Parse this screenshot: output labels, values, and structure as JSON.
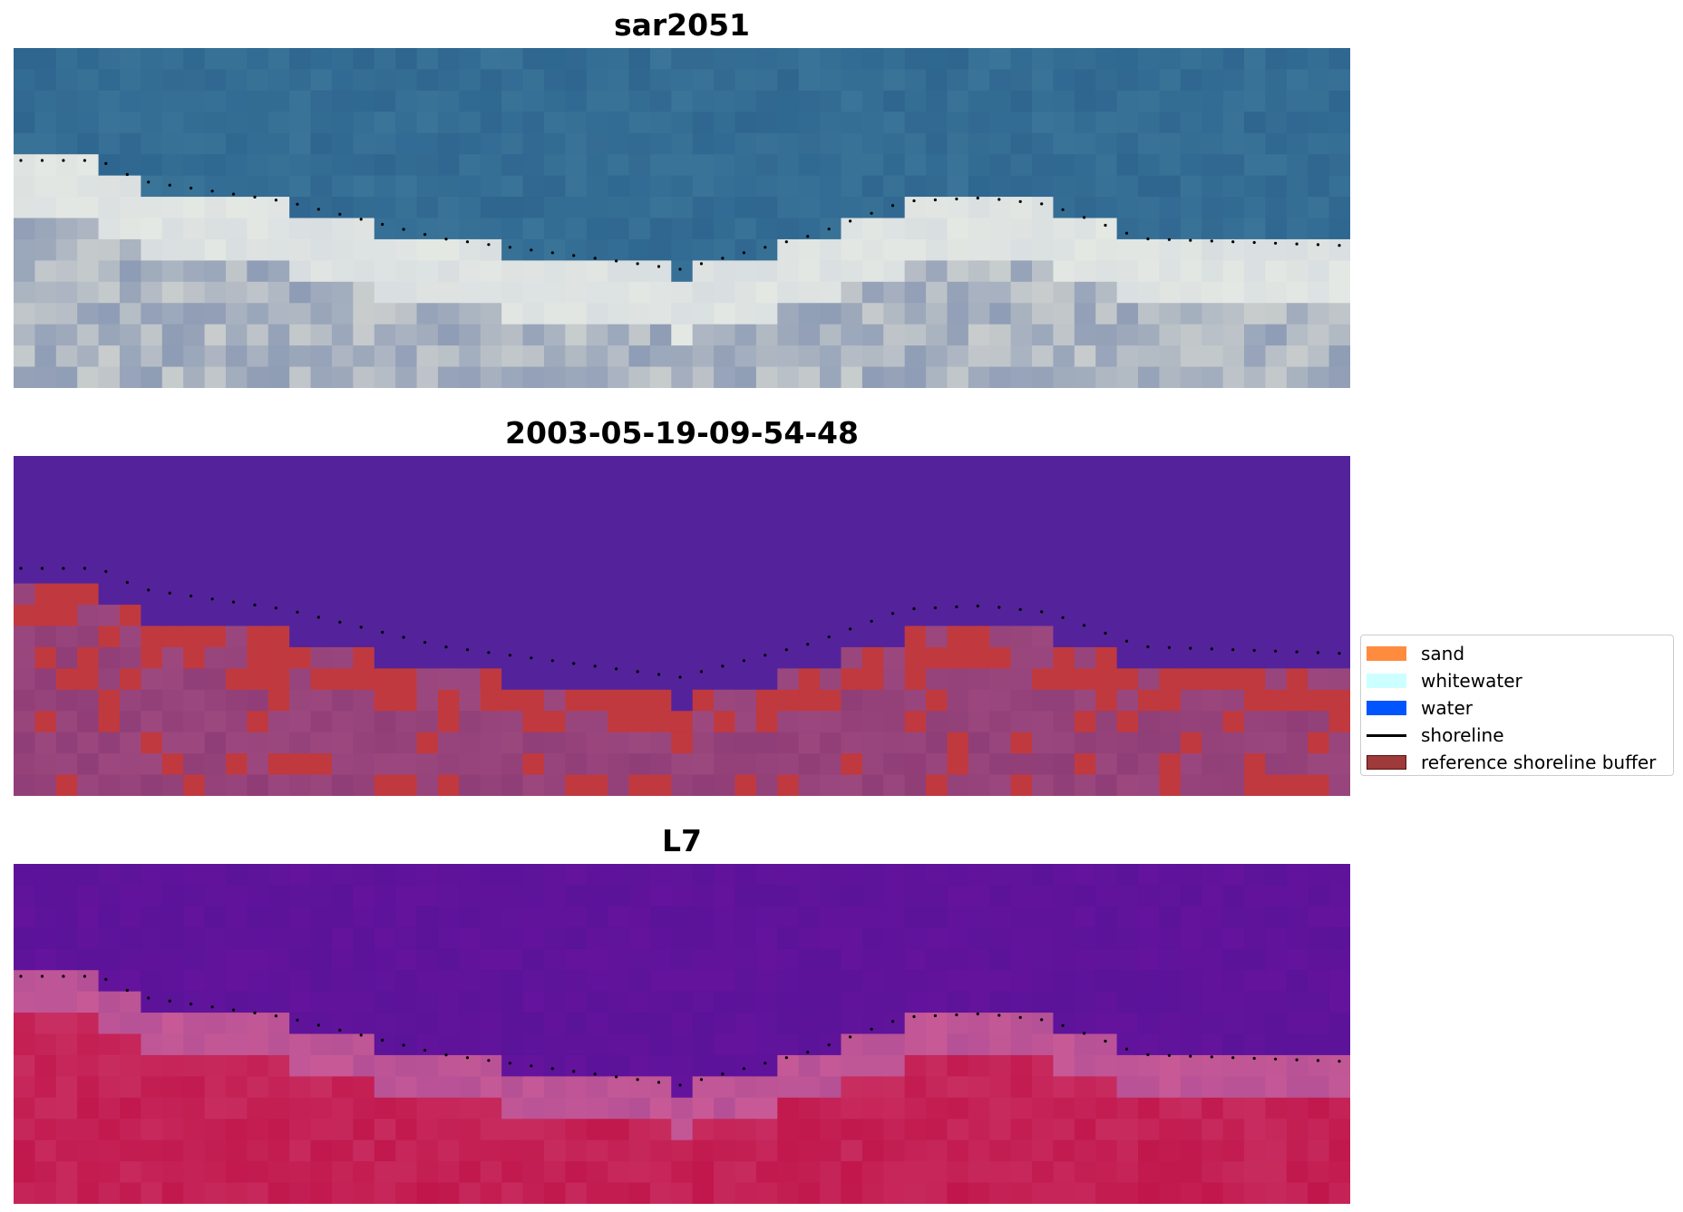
{
  "panels": [
    {
      "title": "sar2051",
      "style": "rgb"
    },
    {
      "title": "2003-05-19-09-54-48",
      "style": "classified"
    },
    {
      "title": "L7",
      "style": "index"
    }
  ],
  "legend": {
    "items": [
      {
        "label": "sand",
        "color": "#ff8c3e",
        "kind": "patch"
      },
      {
        "label": "whitewater",
        "color": "#ccffff",
        "kind": "patch"
      },
      {
        "label": "water",
        "color": "#0055ff",
        "kind": "patch"
      },
      {
        "label": "shoreline",
        "color": "#000000",
        "kind": "line"
      },
      {
        "label": "reference shoreline buffer",
        "color": "#9e3a3a",
        "kind": "patch-outline"
      }
    ]
  },
  "colors": {
    "water_rgb": "#2e6690",
    "surf_rgb": "#d8dde0",
    "beach_rgb": "#8e9cb5",
    "classified_water": "#54239b",
    "classified_land": "#9c487f",
    "classified_buffer": "#c0393f",
    "index_water": "#5a1399",
    "index_land": "#c0154a"
  }
}
